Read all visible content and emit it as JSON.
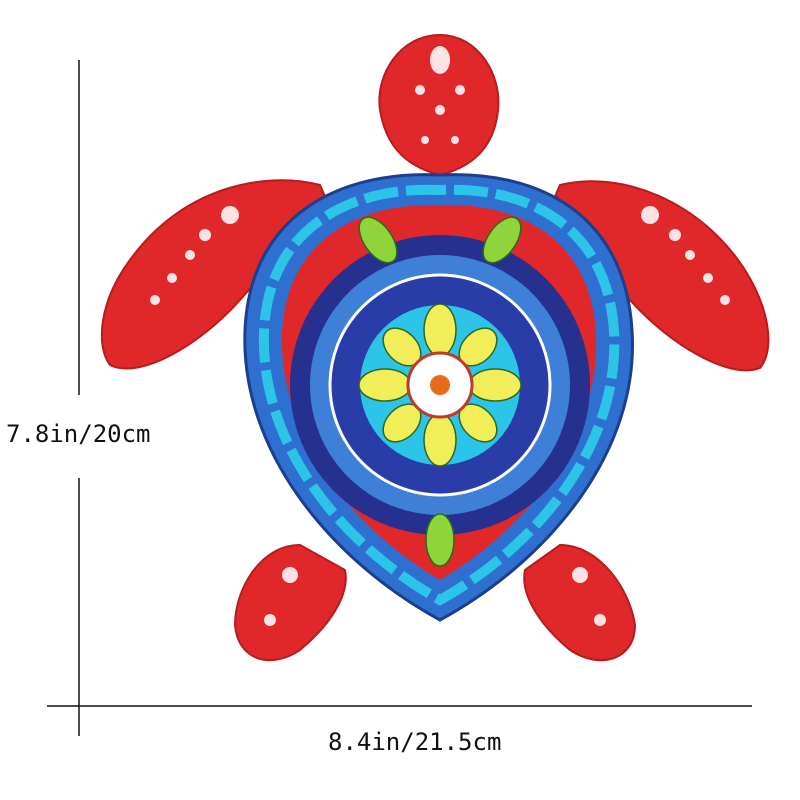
{
  "product": {
    "height_label": "7.8in/20cm",
    "width_label": "8.4in/21.5cm"
  },
  "colors": {
    "body_red": "#e0282a",
    "shell_rim_blue": "#2f6fd0",
    "rim_cyan": "#2cc4e8",
    "leaf_green": "#8fd43a",
    "mandala_navy": "#26308f",
    "petal_yellow": "#f2ee5a"
  }
}
